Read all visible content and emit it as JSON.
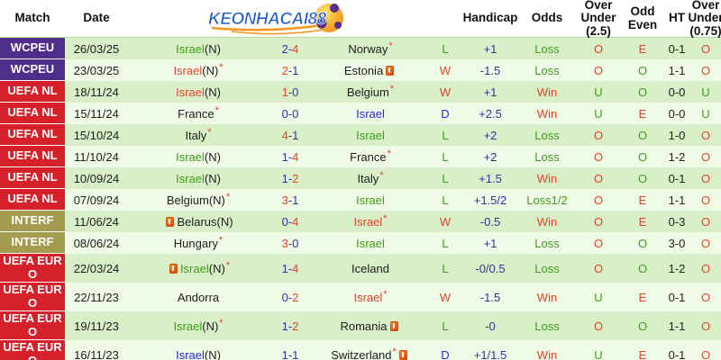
{
  "header": {
    "col_match": "Match",
    "col_date": "Date",
    "logo_text": "KEONHACAI88",
    "col_handicap": "Handicap",
    "col_odds": "Odds",
    "col_ou25": "Over\nUnder\n(2.5)",
    "col_oddeven": "Odd\nEven",
    "col_ht": "HT",
    "col_ou075": "Over\nUnder\n(0.75)"
  },
  "legend": {
    "red_means": "win",
    "green_means": "loss",
    "blue_means": "draw"
  },
  "rows": [
    {
      "league": "WCPEU",
      "lk": "wcpeu",
      "date": "26/03/25",
      "home": {
        "name": "Israel",
        "n": true,
        "star": false,
        "card": null,
        "c": "green"
      },
      "score": {
        "h": "2",
        "a": "4",
        "red": "a"
      },
      "away": {
        "name": "Norway",
        "n": false,
        "star": true,
        "card": null,
        "c": "black"
      },
      "result": {
        "t": "L",
        "c": "green"
      },
      "handicap": "+1",
      "odds": {
        "t": "Loss",
        "c": "green"
      },
      "ou25": {
        "t": "O",
        "c": "red"
      },
      "oddeven": {
        "t": "E",
        "c": "red"
      },
      "ht": "0-1",
      "ou075": {
        "t": "O",
        "c": "red"
      }
    },
    {
      "league": "WCPEU",
      "lk": "wcpeu",
      "date": "23/03/25",
      "home": {
        "name": "Israel",
        "n": true,
        "star": true,
        "card": null,
        "c": "red"
      },
      "score": {
        "h": "2",
        "a": "1",
        "red": "h"
      },
      "away": {
        "name": "Estonia",
        "n": false,
        "star": false,
        "card": "after",
        "c": "black"
      },
      "result": {
        "t": "W",
        "c": "red"
      },
      "handicap": "-1.5",
      "odds": {
        "t": "Loss",
        "c": "green"
      },
      "ou25": {
        "t": "O",
        "c": "red"
      },
      "oddeven": {
        "t": "O",
        "c": "green"
      },
      "ht": "1-1",
      "ou075": {
        "t": "O",
        "c": "red"
      }
    },
    {
      "league": "UEFA NL",
      "lk": "uefanl",
      "date": "18/11/24",
      "home": {
        "name": "Israel",
        "n": true,
        "star": false,
        "card": null,
        "c": "red"
      },
      "score": {
        "h": "1",
        "a": "0",
        "red": "h"
      },
      "away": {
        "name": "Belgium",
        "n": false,
        "star": true,
        "card": null,
        "c": "black"
      },
      "result": {
        "t": "W",
        "c": "red"
      },
      "handicap": "+1",
      "odds": {
        "t": "Win",
        "c": "red"
      },
      "ou25": {
        "t": "U",
        "c": "green"
      },
      "oddeven": {
        "t": "O",
        "c": "green"
      },
      "ht": "0-0",
      "ou075": {
        "t": "U",
        "c": "green"
      }
    },
    {
      "league": "UEFA NL",
      "lk": "uefanl",
      "date": "15/11/24",
      "home": {
        "name": "France",
        "n": false,
        "star": true,
        "card": null,
        "c": "black"
      },
      "score": {
        "h": "0",
        "a": "0",
        "red": null
      },
      "away": {
        "name": "Israel",
        "n": false,
        "star": false,
        "card": null,
        "c": "blue"
      },
      "result": {
        "t": "D",
        "c": "blue"
      },
      "handicap": "+2.5",
      "odds": {
        "t": "Win",
        "c": "red"
      },
      "ou25": {
        "t": "U",
        "c": "green"
      },
      "oddeven": {
        "t": "E",
        "c": "red"
      },
      "ht": "0-0",
      "ou075": {
        "t": "U",
        "c": "green"
      }
    },
    {
      "league": "UEFA NL",
      "lk": "uefanl",
      "date": "15/10/24",
      "home": {
        "name": "Italy",
        "n": false,
        "star": true,
        "card": null,
        "c": "black"
      },
      "score": {
        "h": "4",
        "a": "1",
        "red": "h"
      },
      "away": {
        "name": "Israel",
        "n": false,
        "star": false,
        "card": null,
        "c": "green"
      },
      "result": {
        "t": "L",
        "c": "green"
      },
      "handicap": "+2",
      "odds": {
        "t": "Loss",
        "c": "green"
      },
      "ou25": {
        "t": "O",
        "c": "red"
      },
      "oddeven": {
        "t": "O",
        "c": "green"
      },
      "ht": "1-0",
      "ou075": {
        "t": "O",
        "c": "red"
      }
    },
    {
      "league": "UEFA NL",
      "lk": "uefanl",
      "date": "11/10/24",
      "home": {
        "name": "Israel",
        "n": true,
        "star": false,
        "card": null,
        "c": "green"
      },
      "score": {
        "h": "1",
        "a": "4",
        "red": "a"
      },
      "away": {
        "name": "France",
        "n": false,
        "star": true,
        "card": null,
        "c": "black"
      },
      "result": {
        "t": "L",
        "c": "green"
      },
      "handicap": "+2",
      "odds": {
        "t": "Loss",
        "c": "green"
      },
      "ou25": {
        "t": "O",
        "c": "red"
      },
      "oddeven": {
        "t": "O",
        "c": "green"
      },
      "ht": "1-2",
      "ou075": {
        "t": "O",
        "c": "red"
      }
    },
    {
      "league": "UEFA NL",
      "lk": "uefanl",
      "date": "10/09/24",
      "home": {
        "name": "Israel",
        "n": true,
        "star": false,
        "card": null,
        "c": "green"
      },
      "score": {
        "h": "1",
        "a": "2",
        "red": "a"
      },
      "away": {
        "name": "Italy",
        "n": false,
        "star": true,
        "card": null,
        "c": "black"
      },
      "result": {
        "t": "L",
        "c": "green"
      },
      "handicap": "+1.5",
      "odds": {
        "t": "Win",
        "c": "red"
      },
      "ou25": {
        "t": "O",
        "c": "red"
      },
      "oddeven": {
        "t": "O",
        "c": "green"
      },
      "ht": "0-1",
      "ou075": {
        "t": "O",
        "c": "red"
      }
    },
    {
      "league": "UEFA NL",
      "lk": "uefanl",
      "date": "07/09/24",
      "home": {
        "name": "Belgium",
        "n": true,
        "star": true,
        "card": null,
        "c": "black"
      },
      "score": {
        "h": "3",
        "a": "1",
        "red": "h"
      },
      "away": {
        "name": "Israel",
        "n": false,
        "star": false,
        "card": null,
        "c": "green"
      },
      "result": {
        "t": "L",
        "c": "green"
      },
      "handicap": "+1.5/2",
      "odds": {
        "t": "Loss1/2",
        "c": "green"
      },
      "ou25": {
        "t": "O",
        "c": "red"
      },
      "oddeven": {
        "t": "E",
        "c": "red"
      },
      "ht": "1-1",
      "ou075": {
        "t": "O",
        "c": "red"
      }
    },
    {
      "league": "INTERF",
      "lk": "interf",
      "date": "11/06/24",
      "home": {
        "name": "Belarus",
        "n": true,
        "star": false,
        "card": "before",
        "c": "black"
      },
      "score": {
        "h": "0",
        "a": "4",
        "red": "a"
      },
      "away": {
        "name": "Israel",
        "n": false,
        "star": true,
        "card": null,
        "c": "red"
      },
      "result": {
        "t": "W",
        "c": "red"
      },
      "handicap": "-0.5",
      "odds": {
        "t": "Win",
        "c": "red"
      },
      "ou25": {
        "t": "O",
        "c": "red"
      },
      "oddeven": {
        "t": "E",
        "c": "red"
      },
      "ht": "0-3",
      "ou075": {
        "t": "O",
        "c": "red"
      }
    },
    {
      "league": "INTERF",
      "lk": "interf",
      "date": "08/06/24",
      "home": {
        "name": "Hungary",
        "n": false,
        "star": true,
        "card": null,
        "c": "black"
      },
      "score": {
        "h": "3",
        "a": "0",
        "red": "h"
      },
      "away": {
        "name": "Israel",
        "n": false,
        "star": false,
        "card": null,
        "c": "green"
      },
      "result": {
        "t": "L",
        "c": "green"
      },
      "handicap": "+1",
      "odds": {
        "t": "Loss",
        "c": "green"
      },
      "ou25": {
        "t": "O",
        "c": "red"
      },
      "oddeven": {
        "t": "O",
        "c": "green"
      },
      "ht": "3-0",
      "ou075": {
        "t": "O",
        "c": "red"
      }
    },
    {
      "league": "UEFA EUR O",
      "lk": "uefaeuro",
      "date": "22/03/24",
      "home": {
        "name": "Israel",
        "n": true,
        "star": true,
        "card": "before",
        "c": "green"
      },
      "score": {
        "h": "1",
        "a": "4",
        "red": "a"
      },
      "away": {
        "name": "Iceland",
        "n": false,
        "star": false,
        "card": null,
        "c": "black"
      },
      "result": {
        "t": "L",
        "c": "green"
      },
      "handicap": "-0/0.5",
      "odds": {
        "t": "Loss",
        "c": "green"
      },
      "ou25": {
        "t": "O",
        "c": "red"
      },
      "oddeven": {
        "t": "O",
        "c": "green"
      },
      "ht": "1-2",
      "ou075": {
        "t": "O",
        "c": "red"
      }
    },
    {
      "league": "UEFA EUR O",
      "lk": "uefaeuro",
      "date": "22/11/23",
      "home": {
        "name": "Andorra",
        "n": false,
        "star": false,
        "card": null,
        "c": "black"
      },
      "score": {
        "h": "0",
        "a": "2",
        "red": "a"
      },
      "away": {
        "name": "Israel",
        "n": false,
        "star": true,
        "card": null,
        "c": "red"
      },
      "result": {
        "t": "W",
        "c": "red"
      },
      "handicap": "-1.5",
      "odds": {
        "t": "Win",
        "c": "red"
      },
      "ou25": {
        "t": "U",
        "c": "green"
      },
      "oddeven": {
        "t": "E",
        "c": "red"
      },
      "ht": "0-1",
      "ou075": {
        "t": "O",
        "c": "red"
      }
    },
    {
      "league": "UEFA EUR O",
      "lk": "uefaeuro",
      "date": "19/11/23",
      "home": {
        "name": "Israel",
        "n": true,
        "star": true,
        "card": null,
        "c": "green"
      },
      "score": {
        "h": "1",
        "a": "2",
        "red": "a"
      },
      "away": {
        "name": "Romania",
        "n": false,
        "star": false,
        "card": "after",
        "c": "black"
      },
      "result": {
        "t": "L",
        "c": "green"
      },
      "handicap": "-0",
      "odds": {
        "t": "Loss",
        "c": "green"
      },
      "ou25": {
        "t": "O",
        "c": "red"
      },
      "oddeven": {
        "t": "O",
        "c": "green"
      },
      "ht": "1-1",
      "ou075": {
        "t": "O",
        "c": "red"
      }
    },
    {
      "league": "UEFA EUR O",
      "lk": "uefaeuro",
      "date": "16/11/23",
      "home": {
        "name": "Israel",
        "n": true,
        "star": false,
        "card": null,
        "c": "blue"
      },
      "score": {
        "h": "1",
        "a": "1",
        "red": null
      },
      "away": {
        "name": "Switzerland",
        "n": false,
        "star": true,
        "card": "after",
        "c": "black"
      },
      "result": {
        "t": "D",
        "c": "blue"
      },
      "handicap": "+1/1.5",
      "odds": {
        "t": "Win",
        "c": "red"
      },
      "ou25": {
        "t": "U",
        "c": "green"
      },
      "oddeven": {
        "t": "E",
        "c": "red"
      },
      "ht": "0-1",
      "ou075": {
        "t": "O",
        "c": "red"
      }
    }
  ],
  "colors": {
    "win_red": "#e2432b",
    "loss_green": "#3f9c1c",
    "draw_blue": "#2929d6",
    "score_navy": "#33339e",
    "row_green": "#d8efc8",
    "row_light": "#effae7",
    "league_purple": "#4f2e8c",
    "league_red": "#d6212b",
    "league_olive": "#a39b4d",
    "logo_blue": "#1b57cf",
    "ball_gold": "#f9b233",
    "ball_purple": "#5b2d8e"
  }
}
